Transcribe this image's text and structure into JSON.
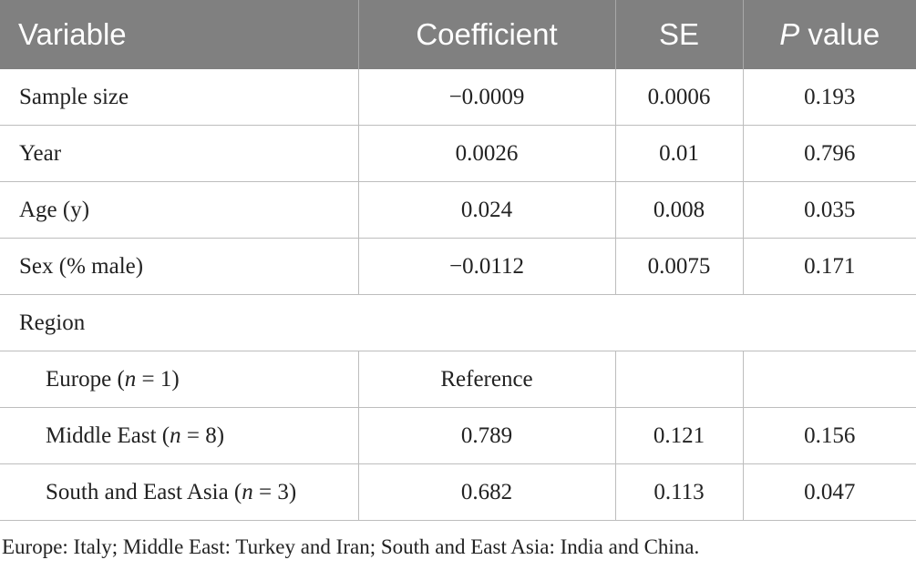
{
  "table": {
    "header": {
      "variable": "Variable",
      "coefficient": "Coefficient",
      "se": "SE",
      "p_italic": "P",
      "p_rest": " value"
    },
    "rows": [
      {
        "variable": "Sample size",
        "coefficient": "−0.0009",
        "se": "0.0006",
        "p": "0.193"
      },
      {
        "variable": "Year",
        "coefficient": "0.0026",
        "se": "0.01",
        "p": "0.796"
      },
      {
        "variable": "Age (y)",
        "coefficient": "0.024",
        "se": "0.008",
        "p": "0.035"
      },
      {
        "variable": "Sex (% male)",
        "coefficient": "−0.0112",
        "se": "0.0075",
        "p": "0.171"
      }
    ],
    "region_label": "Region",
    "region_rows": [
      {
        "name": "Europe (",
        "n_italic": "n",
        "n_rest": " = 1)",
        "coefficient": "Reference",
        "se": "",
        "p": ""
      },
      {
        "name": "Middle East (",
        "n_italic": "n",
        "n_rest": " = 8)",
        "coefficient": "0.789",
        "se": "0.121",
        "p": "0.156"
      },
      {
        "name": "South and East Asia (",
        "n_italic": "n",
        "n_rest": " = 3)",
        "coefficient": "0.682",
        "se": "0.113",
        "p": "0.047"
      }
    ]
  },
  "footnote": "Europe: Italy; Middle East: Turkey and Iran; South and East Asia: India and China."
}
